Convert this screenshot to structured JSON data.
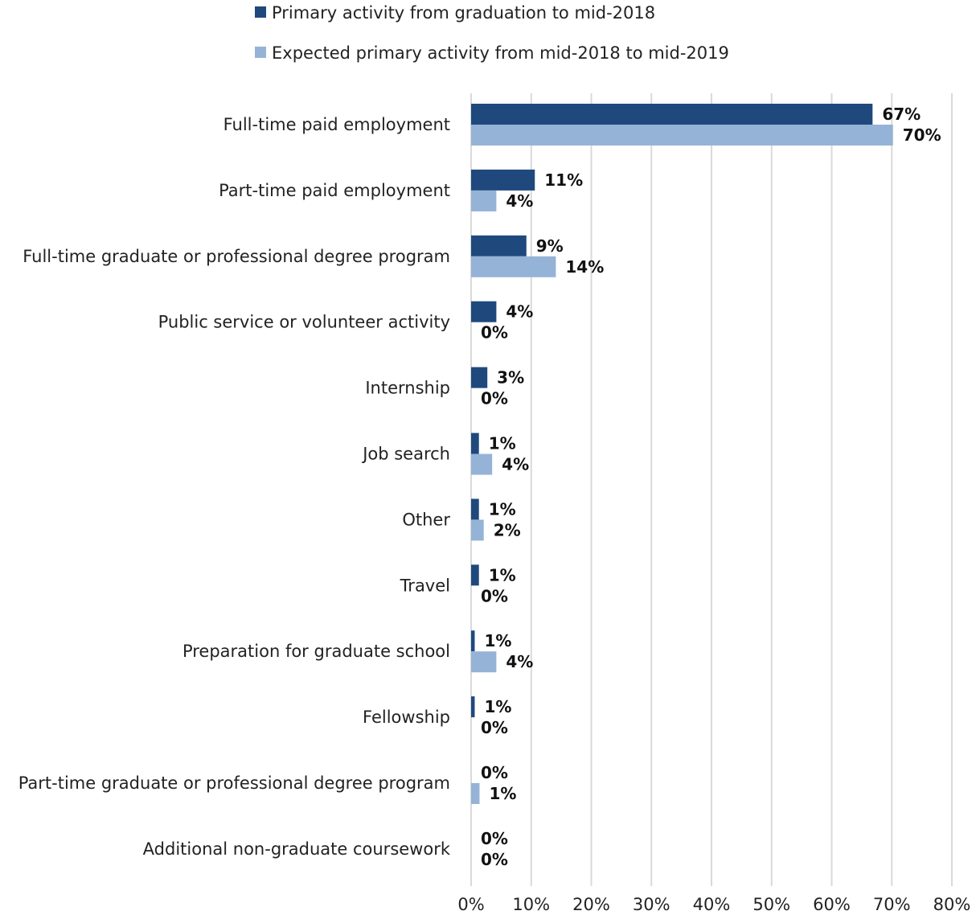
{
  "chart_data": {
    "type": "bar",
    "orientation": "horizontal",
    "title": "",
    "xlabel": "",
    "ylabel": "",
    "xlim": [
      0,
      80
    ],
    "x_ticks": [
      "0%",
      "10%",
      "20%",
      "30%",
      "40%",
      "50%",
      "60%",
      "70%",
      "80%"
    ],
    "grid": "vertical",
    "legend_position": "top",
    "categories": [
      "Full-time paid employment",
      "Part-time paid employment",
      "Full-time graduate or professional degree program",
      "Public service or volunteer activity",
      "Internship",
      "Job search",
      "Other",
      "Travel",
      "Preparation for graduate school",
      "Fellowship",
      "Part-time graduate or professional degree program",
      "Additional non-graduate coursework"
    ],
    "series": [
      {
        "name": "Primary activity from graduation to mid-2018",
        "color": "#1f497d",
        "values": [
          66.8,
          10.6,
          9.2,
          4.2,
          2.7,
          1.3,
          1.3,
          1.3,
          0.6,
          0.6,
          0.0,
          0.0
        ],
        "labels": [
          "67%",
          "11%",
          "9%",
          "4%",
          "3%",
          "1%",
          "1%",
          "1%",
          "1%",
          "1%",
          "0%",
          "0%"
        ]
      },
      {
        "name": "Expected primary activity from mid-2018 to mid-2019",
        "color": "#95b3d7",
        "values": [
          70.2,
          4.2,
          14.1,
          0.0,
          0.0,
          3.5,
          2.1,
          0.0,
          4.2,
          0.0,
          1.4,
          0.0
        ],
        "labels": [
          "70%",
          "4%",
          "14%",
          "0%",
          "0%",
          "4%",
          "2%",
          "0%",
          "4%",
          "0%",
          "1%",
          "0%"
        ]
      }
    ]
  }
}
